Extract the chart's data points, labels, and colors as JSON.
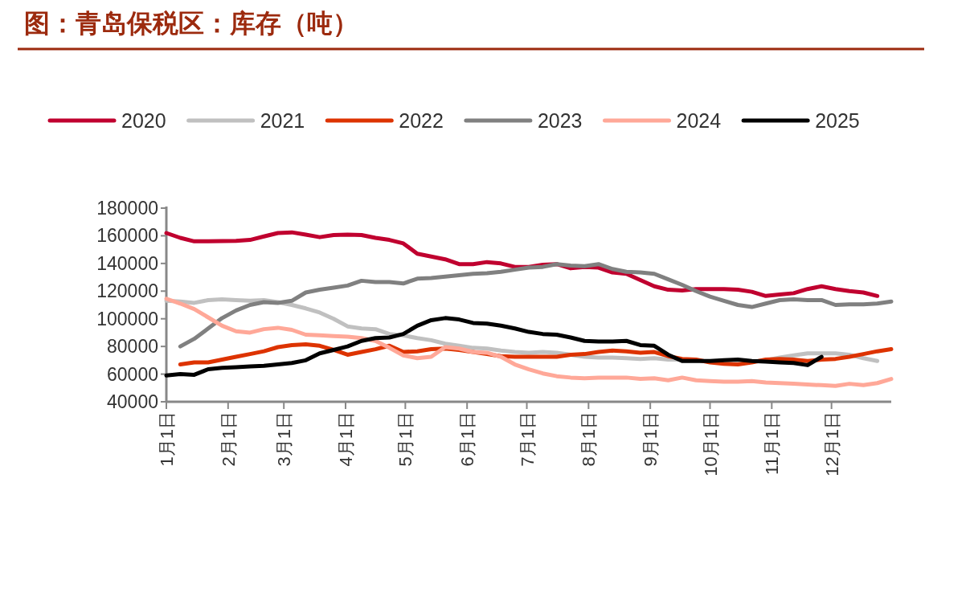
{
  "chart_data": {
    "type": "line",
    "title": "图：青岛保税区：库存（吨）",
    "x": [
      "--01-01",
      "--01-08",
      "--01-15",
      "--01-22",
      "--01-29",
      "--02-05",
      "--02-12",
      "--02-19",
      "--02-26",
      "--03-05",
      "--03-12",
      "--03-19",
      "--03-26",
      "--04-02",
      "--04-09",
      "--04-16",
      "--04-23",
      "--04-30",
      "--05-07",
      "--05-14",
      "--05-21",
      "--05-28",
      "--06-04",
      "--06-11",
      "--06-18",
      "--06-25",
      "--07-02",
      "--07-09",
      "--07-16",
      "--07-23",
      "--07-30",
      "--08-06",
      "--08-13",
      "--08-20",
      "--08-27",
      "--09-03",
      "--09-10",
      "--09-17",
      "--09-24",
      "--10-01",
      "--10-08",
      "--10-15",
      "--10-22",
      "--10-29",
      "--11-05",
      "--11-12",
      "--11-19",
      "--11-26",
      "--12-03",
      "--12-10",
      "--12-17",
      "--12-24",
      "--12-31"
    ],
    "series": [
      {
        "name": "2020",
        "color": "#c0002f",
        "values": [
          162000,
          158500,
          156000,
          156000,
          156200,
          156300,
          157000,
          159500,
          162000,
          162500,
          160800,
          159000,
          160500,
          160800,
          160500,
          158500,
          157000,
          154500,
          147000,
          145000,
          143000,
          139500,
          139500,
          141000,
          140000,
          137500,
          137500,
          139000,
          139500,
          136500,
          137500,
          137000,
          133500,
          132500,
          128000,
          123500,
          121000,
          120500,
          121500,
          121500,
          121500,
          121000,
          119500,
          116500,
          117500,
          118500,
          121500,
          123500,
          121500,
          120000,
          119000,
          116500,
          null
        ]
      },
      {
        "name": "2021",
        "color": "#c0c0c0",
        "values": [
          113000,
          112500,
          111500,
          113500,
          114000,
          113500,
          113000,
          113500,
          112000,
          110000,
          107500,
          104500,
          100000,
          94500,
          93000,
          92500,
          89000,
          88000,
          86000,
          84500,
          82000,
          80500,
          79000,
          78500,
          77000,
          76000,
          75500,
          76000,
          75500,
          74000,
          72500,
          72000,
          72000,
          71500,
          71000,
          71500,
          70500,
          70500,
          null,
          null,
          null,
          null,
          69000,
          70000,
          72000,
          73500,
          75000,
          75000,
          75000,
          74000,
          71500,
          69500,
          null
        ]
      },
      {
        "name": "2022",
        "color": "#dd3300",
        "values": [
          null,
          67000,
          68500,
          68500,
          70500,
          72500,
          74500,
          76500,
          79500,
          81000,
          81500,
          80500,
          77500,
          74000,
          76000,
          78000,
          80500,
          76000,
          76500,
          78000,
          78500,
          77500,
          76000,
          74500,
          73000,
          72500,
          72500,
          72500,
          72500,
          74000,
          74500,
          76000,
          77000,
          76500,
          75500,
          76000,
          73000,
          71000,
          70500,
          68500,
          67500,
          67000,
          68500,
          70500,
          71000,
          70500,
          69500,
          70500,
          71000,
          72500,
          74500,
          76500,
          78000
        ]
      },
      {
        "name": "2023",
        "color": "#808080",
        "values": [
          null,
          80000,
          85500,
          93000,
          100500,
          106000,
          110000,
          112000,
          111500,
          113000,
          119000,
          121000,
          122500,
          124000,
          127500,
          126500,
          126500,
          125500,
          129000,
          129500,
          130500,
          131500,
          132500,
          133000,
          134000,
          135500,
          137000,
          137500,
          139500,
          138500,
          138000,
          139500,
          136000,
          134000,
          133500,
          132500,
          128500,
          124500,
          120000,
          116000,
          113000,
          110000,
          108500,
          111000,
          113500,
          114000,
          113500,
          113500,
          110000,
          110500,
          110500,
          111000,
          112500
        ]
      },
      {
        "name": "2024",
        "color": "#ffa898",
        "values": [
          114500,
          111000,
          107000,
          101000,
          95000,
          91000,
          90000,
          92500,
          93500,
          92000,
          88500,
          88000,
          87500,
          87000,
          86000,
          84000,
          79000,
          73500,
          71500,
          72500,
          79500,
          78500,
          76000,
          75500,
          72500,
          67000,
          63500,
          60500,
          58500,
          57500,
          57000,
          57500,
          57500,
          57500,
          56500,
          57000,
          55500,
          57500,
          55500,
          55000,
          54500,
          54500,
          55000,
          54000,
          53500,
          53000,
          52500,
          52000,
          51500,
          53000,
          52000,
          53500,
          56500
        ]
      },
      {
        "name": "2025",
        "color": "#000000",
        "values": [
          59000,
          60000,
          59500,
          63500,
          64500,
          65000,
          65500,
          66000,
          67000,
          68000,
          70000,
          75000,
          77500,
          80000,
          84000,
          86000,
          86500,
          89000,
          95000,
          99000,
          100500,
          99500,
          97000,
          96500,
          95000,
          93000,
          90500,
          89000,
          88500,
          86500,
          84000,
          83500,
          83500,
          84000,
          81000,
          80500,
          74000,
          69500,
          69500,
          69500,
          70000,
          70500,
          69500,
          69000,
          68500,
          68000,
          66500,
          72500,
          null,
          null,
          null,
          null,
          null
        ]
      }
    ],
    "xlim": [
      "--01-01",
      "--12-31"
    ],
    "xticks": [
      {
        "value": "--01-01",
        "label": "1月1日"
      },
      {
        "value": "--02-01",
        "label": "2月1日"
      },
      {
        "value": "--03-01",
        "label": "3月1日"
      },
      {
        "value": "--04-01",
        "label": "4月1日"
      },
      {
        "value": "--05-01",
        "label": "5月1日"
      },
      {
        "value": "--06-01",
        "label": "6月1日"
      },
      {
        "value": "--07-01",
        "label": "7月1日"
      },
      {
        "value": "--08-01",
        "label": "8月1日"
      },
      {
        "value": "--09-01",
        "label": "9月1日"
      },
      {
        "value": "--10-01",
        "label": "10月1日"
      },
      {
        "value": "--11-01",
        "label": "11月1日"
      },
      {
        "value": "--12-01",
        "label": "12月1日"
      }
    ],
    "ylim": [
      40000,
      180000
    ],
    "yticks": [
      40000,
      60000,
      80000,
      100000,
      120000,
      140000,
      160000,
      180000
    ],
    "legend": "top",
    "grid": false,
    "marker": "none",
    "line_style": "solid"
  }
}
